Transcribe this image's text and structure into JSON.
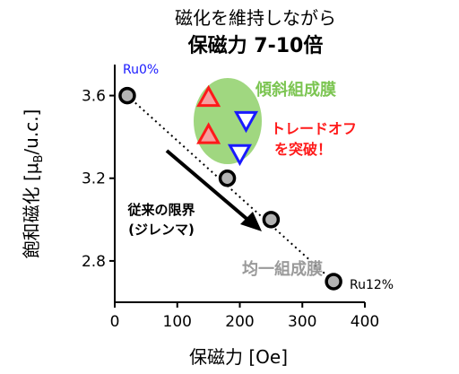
{
  "chart_data": {
    "type": "scatter",
    "title_line1": "磁化を維持しながら",
    "title_line2": "保磁力 7-10倍",
    "xlabel": "保磁力 [Oe]",
    "ylabel_main": "飽和磁化 [μ",
    "ylabel_sub": "B",
    "ylabel_tail": "/u.c.]",
    "xlim": [
      0,
      400
    ],
    "ylim": [
      2.6,
      3.75
    ],
    "xticks": [
      0,
      100,
      200,
      300,
      400
    ],
    "yticks": [
      2.8,
      3.2,
      3.6
    ],
    "ytick_labels": [
      "2.8",
      "3.2",
      "3.6"
    ],
    "xtick_labels": [
      "0",
      "100",
      "200",
      "300",
      "400"
    ],
    "uniform_series": {
      "label": "均一組成膜",
      "points": [
        [
          20,
          3.6
        ],
        [
          180,
          3.2
        ],
        [
          250,
          3.0
        ],
        [
          350,
          2.7
        ]
      ]
    },
    "graded_series_up": {
      "points": [
        [
          150,
          3.59
        ],
        [
          150,
          3.41
        ]
      ]
    },
    "graded_series_down": {
      "points": [
        [
          210,
          3.48
        ],
        [
          200,
          3.32
        ]
      ]
    },
    "graded_label": "傾斜組成膜",
    "annotations": {
      "ru0": "Ru0%",
      "ru12": "Ru12%",
      "tradeoff_line1": "トレードオフ",
      "tradeoff_line2": "を突破！",
      "limit_line1": "従来の限界",
      "limit_line2": "(ジレンマ)"
    },
    "colors": {
      "ru0": "#1a1aff",
      "ellipse": "#8fd06a",
      "graded_label": "#7cc552",
      "triangle_up": "#ff1a1a",
      "triangle_down": "#1a1aff",
      "tradeoff": "#ff1a1a",
      "uniform_label": "#9a9a9a"
    },
    "grid": false
  }
}
